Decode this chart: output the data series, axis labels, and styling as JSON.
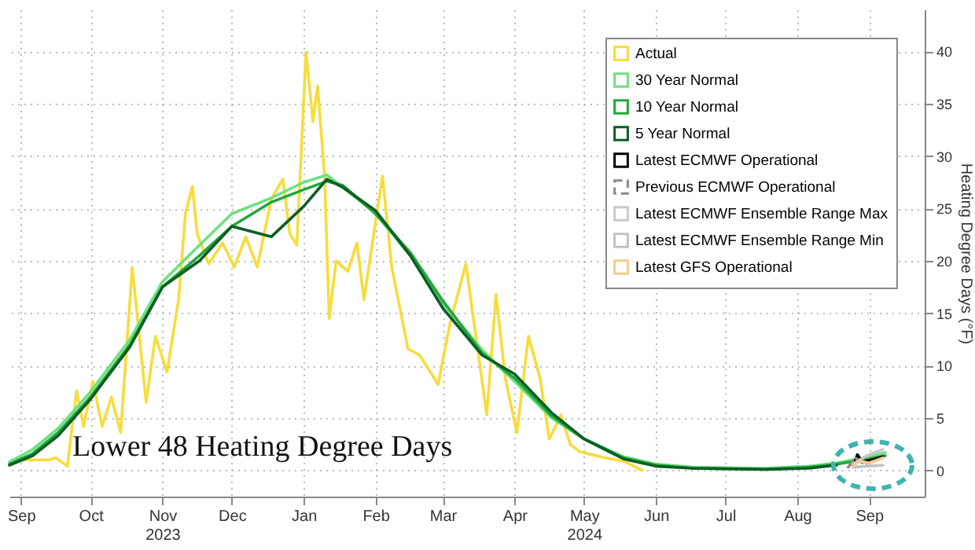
{
  "chart_data": {
    "type": "line",
    "title": "Lower 48 Heating Degree Days",
    "ylabel": "Heating Degree Days (°F)",
    "x": [
      "2023-09-10",
      "2023-09-20",
      "2023-10-01",
      "2023-10-15",
      "2023-11-01",
      "2023-11-15",
      "2023-12-01",
      "2023-12-15",
      "2024-01-01",
      "2024-01-15",
      "2024-01-25",
      "2024-02-01",
      "2024-02-15",
      "2024-03-01",
      "2024-03-15",
      "2024-04-01",
      "2024-04-15",
      "2024-05-01",
      "2024-05-15",
      "2024-06-01",
      "2024-06-15",
      "2024-07-01",
      "2024-08-01",
      "2024-08-20",
      "2024-09-01",
      "2024-09-15",
      "2024-09-22"
    ],
    "series": [
      {
        "name": "Actual",
        "color": "#f7dc3c",
        "x": [
          "2023-09-11",
          "2023-09-27",
          "2023-09-30",
          "2023-10-05",
          "2023-10-09",
          "2023-10-12",
          "2023-10-16",
          "2023-10-20",
          "2023-10-24",
          "2023-10-28",
          "2023-11-02",
          "2023-11-08",
          "2023-11-12",
          "2023-11-17",
          "2023-11-22",
          "2023-11-25",
          "2023-11-28",
          "2023-11-30",
          "2023-12-05",
          "2023-12-11",
          "2023-12-16",
          "2023-12-21",
          "2023-12-26",
          "2024-01-01",
          "2024-01-06",
          "2024-01-09",
          "2024-01-12",
          "2024-01-16",
          "2024-01-19",
          "2024-01-21",
          "2024-01-24",
          "2024-01-26",
          "2024-01-29",
          "2024-02-03",
          "2024-02-07",
          "2024-02-10",
          "2024-02-18",
          "2024-02-22",
          "2024-02-29",
          "2024-03-05",
          "2024-03-13",
          "2024-03-18",
          "2024-03-25",
          "2024-04-03",
          "2024-04-07",
          "2024-04-11",
          "2024-04-16",
          "2024-04-21",
          "2024-04-26",
          "2024-04-30",
          "2024-05-05",
          "2024-05-09",
          "2024-05-13",
          "2024-05-24",
          "2024-06-01",
          "2024-06-09"
        ],
        "values": [
          1.0,
          1.0,
          1.2,
          0.4,
          7.6,
          4.2,
          8.5,
          4.2,
          7.0,
          3.6,
          19.4,
          6.5,
          12.8,
          9.4,
          16.3,
          24.6,
          27.1,
          22.6,
          19.7,
          21.7,
          19.4,
          22.3,
          19.4,
          25.9,
          27.8,
          22.6,
          21.5,
          39.9,
          33.3,
          36.7,
          28.1,
          14.5,
          20,
          19,
          21.7,
          16.3,
          28.1,
          19.4,
          11.6,
          11,
          8.2,
          13.9,
          19.7,
          5.3,
          16.8,
          8.8,
          3.6,
          12.8,
          8.8,
          3.0,
          5.3,
          2.5,
          1.8,
          1.2,
          0.9,
          0
        ]
      },
      {
        "name": "30 Year Normal",
        "color": "#6fe07f",
        "values": [
          0.8,
          2,
          4,
          7.5,
          12.5,
          18,
          21.5,
          24.5,
          26,
          27.5,
          28.2,
          27,
          24.5,
          20.5,
          16,
          11.5,
          8.5,
          5,
          3,
          1.3,
          0.6,
          0.3,
          0.2,
          0.4,
          0.7,
          1.3,
          1.7
        ]
      },
      {
        "name": "10 Year Normal",
        "color": "#22a83c",
        "values": [
          0.6,
          1.6,
          3.6,
          7,
          12,
          17.5,
          20.5,
          23.3,
          25.6,
          26.8,
          27.6,
          27.2,
          24.5,
          20.8,
          16.2,
          11.2,
          8.8,
          5.2,
          3,
          1.2,
          0.5,
          0.2,
          0.1,
          0.3,
          0.6,
          1.1,
          1.4
        ]
      },
      {
        "name": "5 Year Normal",
        "color": "#0b5e24",
        "values": [
          0.5,
          1.4,
          3.3,
          6.8,
          11.8,
          17.5,
          20,
          23.3,
          22.3,
          25.2,
          27.8,
          27,
          24.8,
          20.5,
          15.5,
          11,
          9.2,
          5.5,
          3,
          1.1,
          0.4,
          0.2,
          0.1,
          0.2,
          0.5,
          null,
          null
        ]
      },
      {
        "name": "Latest ECMWF Operational",
        "color": "#000000",
        "x": [
          "2024-09-08",
          "2024-09-10",
          "2024-09-12",
          "2024-09-16",
          "2024-09-21"
        ],
        "values": [
          0.4,
          1.5,
          0.8,
          1.0,
          1.3
        ]
      },
      {
        "name": "Previous ECMWF Operational",
        "color": "#8a8a8a",
        "line_style": "dashed",
        "x": [
          "2024-09-06",
          "2024-09-09",
          "2024-09-13",
          "2024-09-19"
        ],
        "values": [
          0.3,
          1.2,
          0.6,
          1.0
        ]
      },
      {
        "name": "Latest ECMWF Ensemble Range Max",
        "color": "#c9c9c9",
        "x": [
          "2024-09-08",
          "2024-09-14",
          "2024-09-21"
        ],
        "values": [
          0.6,
          1.4,
          2.0
        ]
      },
      {
        "name": "Latest ECMWF Ensemble Range Min",
        "color": "#bfc3c8",
        "x": [
          "2024-09-08",
          "2024-09-14",
          "2024-09-21"
        ],
        "values": [
          0.3,
          0.4,
          0.5
        ]
      },
      {
        "name": "Latest GFS Operational",
        "color": "#f6c98c",
        "x": [
          "2024-09-08",
          "2024-09-11",
          "2024-09-15",
          "2024-09-21"
        ],
        "values": [
          0.4,
          0.9,
          0.7,
          1.2
        ]
      }
    ],
    "xlim": [
      "2023-09-10",
      "2024-10-09"
    ],
    "xticks": [
      {
        "value": "2023-09-15",
        "label": "Sep"
      },
      {
        "value": "2023-10-15",
        "label": "Oct"
      },
      {
        "value": "2023-11-15",
        "label": "Nov\n2023"
      },
      {
        "value": "2023-12-15",
        "label": "Dec"
      },
      {
        "value": "2024-01-15",
        "label": "Jan"
      },
      {
        "value": "2024-02-15",
        "label": "Feb"
      },
      {
        "value": "2024-03-15",
        "label": "Mar"
      },
      {
        "value": "2024-04-15",
        "label": "Apr"
      },
      {
        "value": "2024-05-15",
        "label": "May\n2024"
      },
      {
        "value": "2024-06-15",
        "label": "Jun"
      },
      {
        "value": "2024-07-15",
        "label": "Jul"
      },
      {
        "value": "2024-08-15",
        "label": "Aug"
      },
      {
        "value": "2024-09-15",
        "label": "Sep"
      }
    ],
    "ylim": [
      -2.5,
      44
    ],
    "yticks": [
      0,
      5,
      10,
      15,
      20,
      25,
      30,
      35,
      40
    ],
    "grid": true,
    "legend": "top right",
    "marker": "none",
    "line_style": "solid"
  }
}
